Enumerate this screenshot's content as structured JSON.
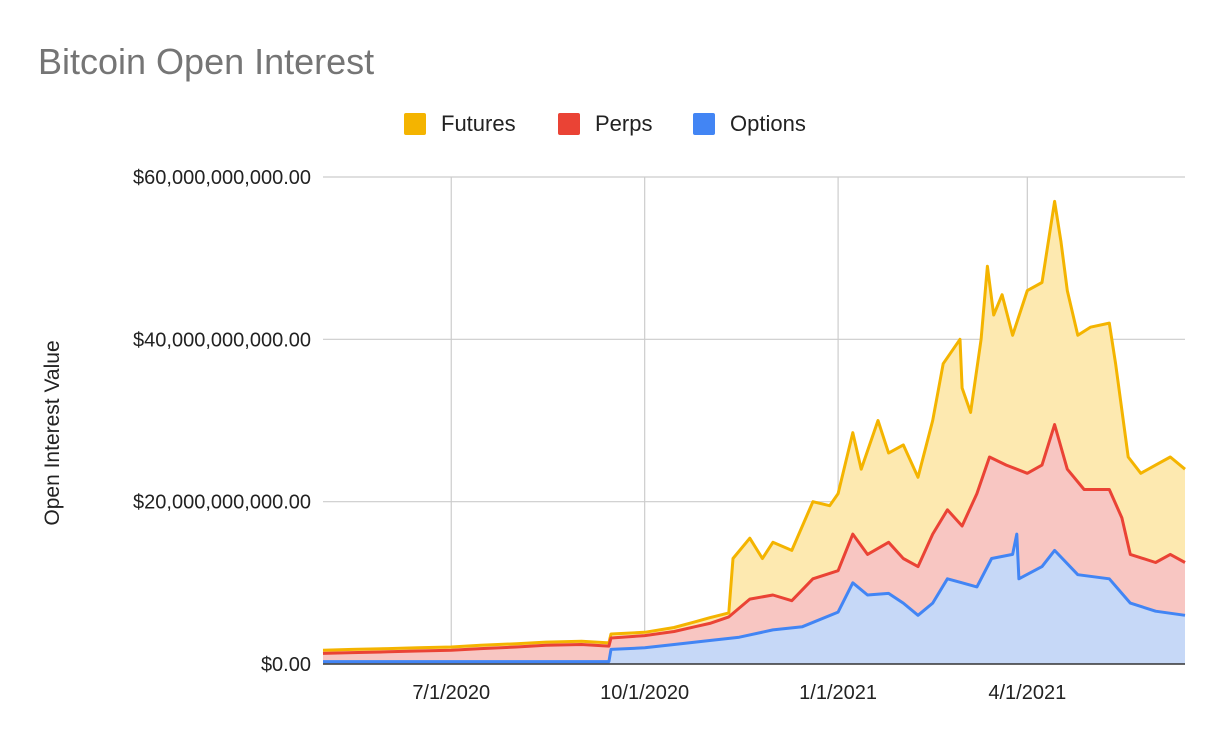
{
  "chart_data": {
    "type": "area",
    "stacked": true,
    "title": "Bitcoin Open Interest",
    "ylabel": "Open Interest Value",
    "xlabel": "",
    "ylim": [
      0,
      60000000000
    ],
    "yticks": [
      {
        "value": 0,
        "label": "$0.00"
      },
      {
        "value": 20000000000,
        "label": "$20,000,000,000.00"
      },
      {
        "value": 40000000000,
        "label": "$40,000,000,000.00"
      },
      {
        "value": 60000000000,
        "label": "$60,000,000,000.00"
      }
    ],
    "xlim": [
      "2020-05-01",
      "2021-06-15"
    ],
    "xticks": [
      {
        "value": "2020-07-01",
        "label": "7/1/2020"
      },
      {
        "value": "2020-10-01",
        "label": "10/1/2020"
      },
      {
        "value": "2021-01-01",
        "label": "1/1/2021"
      },
      {
        "value": "2021-04-01",
        "label": "4/1/2021"
      }
    ],
    "legend": {
      "position": "top"
    },
    "grid": true,
    "series": [
      {
        "name": "Futures",
        "color": "#f4b400",
        "fill": "#fde9b0",
        "points": [
          [
            "2020-05-01",
            1700000000
          ],
          [
            "2020-05-15",
            1800000000
          ],
          [
            "2020-06-01",
            1900000000
          ],
          [
            "2020-06-15",
            2000000000
          ],
          [
            "2020-07-01",
            2100000000
          ],
          [
            "2020-07-15",
            2300000000
          ],
          [
            "2020-08-01",
            2500000000
          ],
          [
            "2020-08-15",
            2700000000
          ],
          [
            "2020-09-01",
            2800000000
          ],
          [
            "2020-09-14",
            2600000000
          ],
          [
            "2020-09-15",
            3700000000
          ],
          [
            "2020-10-01",
            3900000000
          ],
          [
            "2020-10-15",
            4500000000
          ],
          [
            "2020-10-25",
            5200000000
          ],
          [
            "2020-11-01",
            5700000000
          ],
          [
            "2020-11-10",
            6300000000
          ],
          [
            "2020-11-12",
            13000000000
          ],
          [
            "2020-11-20",
            15500000000
          ],
          [
            "2020-11-26",
            13000000000
          ],
          [
            "2020-12-01",
            15000000000
          ],
          [
            "2020-12-10",
            14000000000
          ],
          [
            "2020-12-20",
            20000000000
          ],
          [
            "2020-12-28",
            19500000000
          ],
          [
            "2021-01-01",
            21000000000
          ],
          [
            "2021-01-08",
            28500000000
          ],
          [
            "2021-01-12",
            24000000000
          ],
          [
            "2021-01-20",
            30000000000
          ],
          [
            "2021-01-25",
            26000000000
          ],
          [
            "2021-02-01",
            27000000000
          ],
          [
            "2021-02-08",
            23000000000
          ],
          [
            "2021-02-15",
            30000000000
          ],
          [
            "2021-02-20",
            37000000000
          ],
          [
            "2021-02-28",
            40000000000
          ],
          [
            "2021-03-01",
            34000000000
          ],
          [
            "2021-03-05",
            31000000000
          ],
          [
            "2021-03-10",
            40000000000
          ],
          [
            "2021-03-13",
            49000000000
          ],
          [
            "2021-03-16",
            43000000000
          ],
          [
            "2021-03-20",
            45500000000
          ],
          [
            "2021-03-25",
            40500000000
          ],
          [
            "2021-04-01",
            46000000000
          ],
          [
            "2021-04-08",
            47000000000
          ],
          [
            "2021-04-14",
            57000000000
          ],
          [
            "2021-04-17",
            52000000000
          ],
          [
            "2021-04-20",
            46000000000
          ],
          [
            "2021-04-25",
            40500000000
          ],
          [
            "2021-05-01",
            41500000000
          ],
          [
            "2021-05-10",
            42000000000
          ],
          [
            "2021-05-13",
            37000000000
          ],
          [
            "2021-05-19",
            25500000000
          ],
          [
            "2021-05-25",
            23500000000
          ],
          [
            "2021-06-01",
            24500000000
          ],
          [
            "2021-06-08",
            25500000000
          ],
          [
            "2021-06-15",
            24000000000
          ]
        ]
      },
      {
        "name": "Perps",
        "color": "#ea4335",
        "fill": "#f8c6c2",
        "points": [
          [
            "2020-05-01",
            1300000000
          ],
          [
            "2020-05-15",
            1400000000
          ],
          [
            "2020-06-01",
            1500000000
          ],
          [
            "2020-06-15",
            1600000000
          ],
          [
            "2020-07-01",
            1700000000
          ],
          [
            "2020-07-15",
            1900000000
          ],
          [
            "2020-08-01",
            2100000000
          ],
          [
            "2020-08-15",
            2300000000
          ],
          [
            "2020-09-01",
            2400000000
          ],
          [
            "2020-09-14",
            2200000000
          ],
          [
            "2020-09-15",
            3200000000
          ],
          [
            "2020-10-01",
            3500000000
          ],
          [
            "2020-10-15",
            4000000000
          ],
          [
            "2020-10-25",
            4600000000
          ],
          [
            "2020-11-01",
            5000000000
          ],
          [
            "2020-11-10",
            5800000000
          ],
          [
            "2020-11-20",
            8000000000
          ],
          [
            "2020-12-01",
            8500000000
          ],
          [
            "2020-12-10",
            7800000000
          ],
          [
            "2020-12-20",
            10500000000
          ],
          [
            "2021-01-01",
            11500000000
          ],
          [
            "2021-01-08",
            16000000000
          ],
          [
            "2021-01-15",
            13500000000
          ],
          [
            "2021-01-25",
            15000000000
          ],
          [
            "2021-02-01",
            13000000000
          ],
          [
            "2021-02-08",
            12000000000
          ],
          [
            "2021-02-15",
            16000000000
          ],
          [
            "2021-02-22",
            19000000000
          ],
          [
            "2021-03-01",
            17000000000
          ],
          [
            "2021-03-08",
            21000000000
          ],
          [
            "2021-03-14",
            25500000000
          ],
          [
            "2021-03-22",
            24500000000
          ],
          [
            "2021-04-01",
            23500000000
          ],
          [
            "2021-04-08",
            24500000000
          ],
          [
            "2021-04-14",
            29500000000
          ],
          [
            "2021-04-20",
            24000000000
          ],
          [
            "2021-04-28",
            21500000000
          ],
          [
            "2021-05-10",
            21500000000
          ],
          [
            "2021-05-16",
            18000000000
          ],
          [
            "2021-05-20",
            13500000000
          ],
          [
            "2021-06-01",
            12500000000
          ],
          [
            "2021-06-08",
            13500000000
          ],
          [
            "2021-06-15",
            12500000000
          ]
        ]
      },
      {
        "name": "Options",
        "color": "#4285f4",
        "fill": "#c6d8f7",
        "points": [
          [
            "2020-05-01",
            300000000
          ],
          [
            "2020-09-14",
            300000000
          ],
          [
            "2020-09-15",
            1800000000
          ],
          [
            "2020-10-01",
            2000000000
          ],
          [
            "2020-10-15",
            2400000000
          ],
          [
            "2020-11-01",
            2900000000
          ],
          [
            "2020-11-15",
            3300000000
          ],
          [
            "2020-12-01",
            4200000000
          ],
          [
            "2020-12-15",
            4600000000
          ],
          [
            "2021-01-01",
            6400000000
          ],
          [
            "2021-01-08",
            10000000000
          ],
          [
            "2021-01-15",
            8500000000
          ],
          [
            "2021-01-25",
            8700000000
          ],
          [
            "2021-02-01",
            7500000000
          ],
          [
            "2021-02-08",
            6000000000
          ],
          [
            "2021-02-15",
            7500000000
          ],
          [
            "2021-02-22",
            10500000000
          ],
          [
            "2021-03-01",
            10000000000
          ],
          [
            "2021-03-08",
            9500000000
          ],
          [
            "2021-03-15",
            13000000000
          ],
          [
            "2021-03-25",
            13500000000
          ],
          [
            "2021-03-27",
            16000000000
          ],
          [
            "2021-03-28",
            10500000000
          ],
          [
            "2021-04-08",
            12000000000
          ],
          [
            "2021-04-14",
            14000000000
          ],
          [
            "2021-04-25",
            11000000000
          ],
          [
            "2021-05-10",
            10500000000
          ],
          [
            "2021-05-20",
            7500000000
          ],
          [
            "2021-06-01",
            6500000000
          ],
          [
            "2021-06-15",
            6000000000
          ]
        ]
      }
    ]
  }
}
